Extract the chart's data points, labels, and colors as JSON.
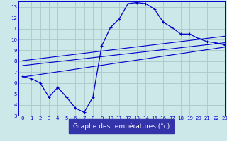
{
  "xlabel": "Graphe des températures (°c)",
  "background_color": "#cce8e8",
  "grid_color": "#aac8c8",
  "line_color": "#0000cc",
  "x_hours": [
    0,
    1,
    2,
    3,
    4,
    5,
    6,
    7,
    8,
    9,
    10,
    11,
    12,
    13,
    14,
    15,
    16,
    17,
    18,
    19,
    20,
    21,
    22,
    23
  ],
  "temp_curve": [
    6.6,
    6.4,
    6.0,
    4.7,
    5.6,
    4.7,
    3.7,
    3.3,
    4.7,
    9.4,
    11.1,
    11.9,
    13.3,
    13.4,
    13.3,
    12.8,
    11.6,
    11.1,
    10.5,
    10.5,
    10.1,
    9.8,
    9.7,
    9.5
  ],
  "trend1_x": [
    0,
    23
  ],
  "trend1_y": [
    6.55,
    9.3
  ],
  "trend2_x": [
    0,
    23
  ],
  "trend2_y": [
    7.6,
    9.7
  ],
  "trend3_x": [
    0,
    23
  ],
  "trend3_y": [
    8.05,
    10.3
  ],
  "xlim": [
    -0.5,
    23
  ],
  "ylim": [
    3,
    13.5
  ],
  "yticks": [
    3,
    4,
    5,
    6,
    7,
    8,
    9,
    10,
    11,
    12,
    13
  ],
  "xticks": [
    0,
    1,
    2,
    3,
    4,
    5,
    6,
    7,
    8,
    9,
    10,
    11,
    12,
    13,
    14,
    15,
    16,
    17,
    18,
    19,
    20,
    21,
    22,
    23
  ],
  "tick_fontsize": 5.0,
  "xlabel_fontsize": 6.5,
  "xlabel_color": "#0000cc"
}
